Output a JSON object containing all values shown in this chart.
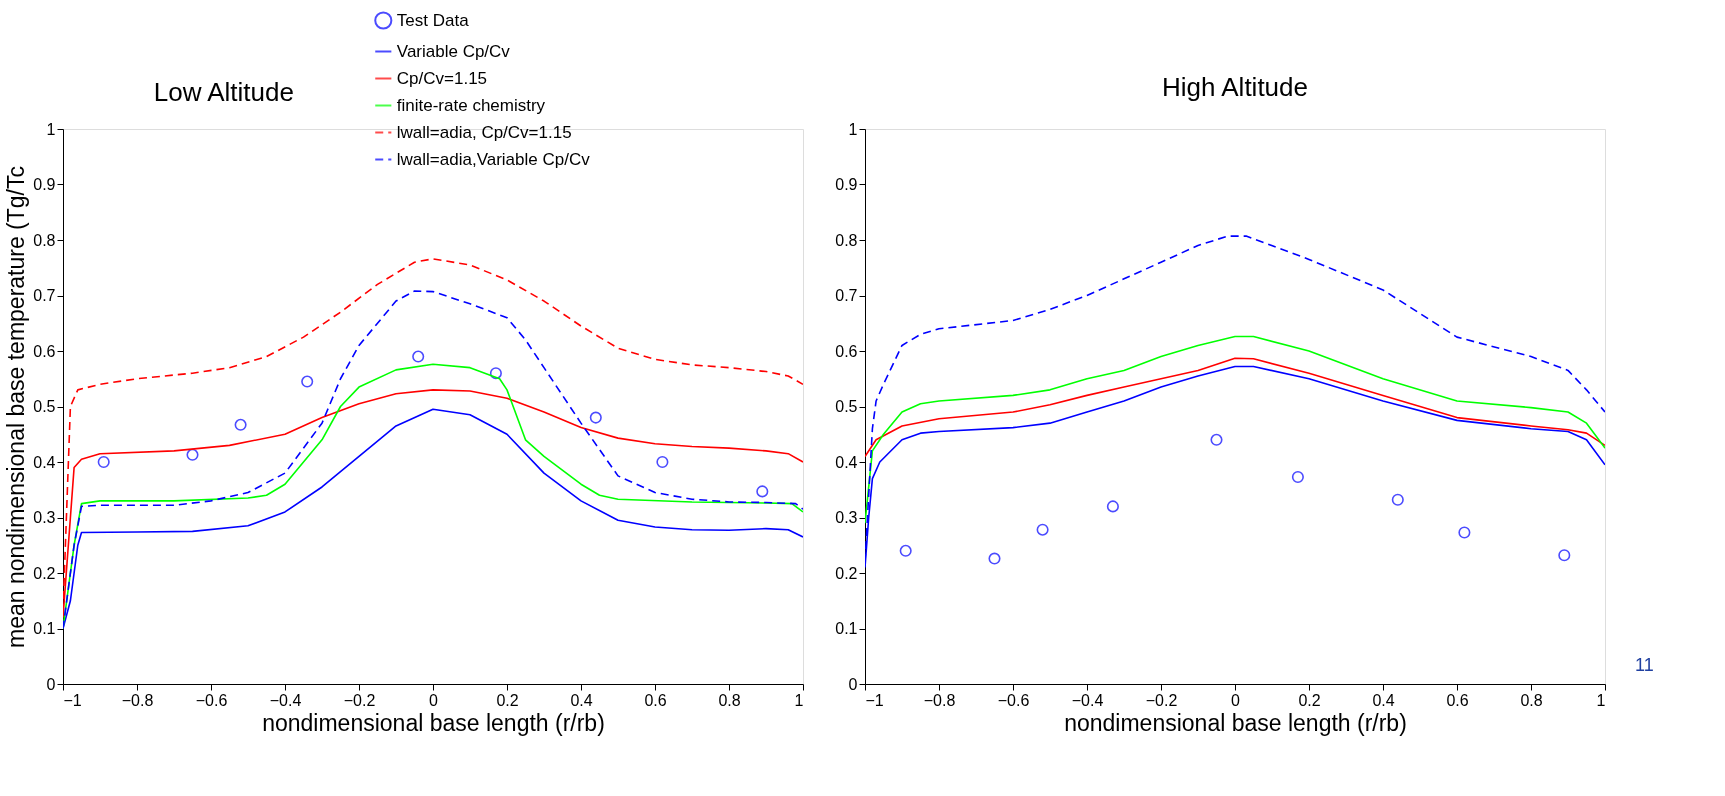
{
  "chart_data": [
    {
      "type": "line",
      "title": "Low Altitude",
      "xlabel": "nondimensional base length (r/rb)",
      "ylabel": "mean nondimensional base temperature (Tg/Tc",
      "xlim": [
        -1,
        1
      ],
      "ylim": [
        0,
        1
      ],
      "xticks": [
        -1,
        -0.8,
        -0.6,
        -0.4,
        -0.2,
        0,
        0.2,
        0.4,
        0.6,
        0.8,
        1
      ],
      "yticks": [
        0,
        0.1,
        0.2,
        0.3,
        0.4,
        0.5,
        0.6,
        0.7,
        0.8,
        0.9,
        1
      ],
      "legend": "top right",
      "series": [
        {
          "name": "Test Data",
          "type": "scatter",
          "color": "#0000ff",
          "marker": "circle",
          "x": [
            -0.89,
            -0.65,
            -0.52,
            -0.34,
            -0.04,
            0.17,
            0.44,
            0.62,
            0.89
          ],
          "values": [
            0.4,
            0.413,
            0.467,
            0.545,
            0.59,
            0.56,
            0.48,
            0.4,
            0.347
          ]
        },
        {
          "name": "Variable Cp/Cv",
          "type": "line",
          "color": "#0000ff",
          "line_style": "solid",
          "marker": "none",
          "x": [
            -1,
            -0.98,
            -0.96,
            -0.95,
            -0.8,
            -0.65,
            -0.5,
            -0.4,
            -0.3,
            -0.2,
            -0.1,
            0,
            0.1,
            0.2,
            0.3,
            0.4,
            0.5,
            0.6,
            0.7,
            0.8,
            0.9,
            0.96,
            1
          ],
          "values": [
            0.1,
            0.15,
            0.25,
            0.273,
            0.274,
            0.275,
            0.285,
            0.31,
            0.355,
            0.41,
            0.465,
            0.495,
            0.485,
            0.45,
            0.38,
            0.33,
            0.295,
            0.283,
            0.278,
            0.277,
            0.28,
            0.278,
            0.265
          ]
        },
        {
          "name": "Cp/Cv=1.15",
          "type": "line",
          "color": "#ff0000",
          "line_style": "solid",
          "marker": "none",
          "x": [
            -1,
            -0.98,
            -0.97,
            -0.95,
            -0.9,
            -0.7,
            -0.55,
            -0.4,
            -0.3,
            -0.2,
            -0.1,
            0,
            0.1,
            0.2,
            0.3,
            0.4,
            0.5,
            0.6,
            0.7,
            0.8,
            0.9,
            0.96,
            1
          ],
          "values": [
            0.12,
            0.3,
            0.39,
            0.405,
            0.415,
            0.42,
            0.43,
            0.45,
            0.48,
            0.505,
            0.523,
            0.53,
            0.528,
            0.515,
            0.49,
            0.462,
            0.443,
            0.433,
            0.428,
            0.425,
            0.42,
            0.415,
            0.4
          ]
        },
        {
          "name": "finite-rate chemistry",
          "type": "line",
          "color": "#00ff00",
          "line_style": "solid",
          "marker": "none",
          "x": [
            -1,
            -0.97,
            -0.95,
            -0.9,
            -0.7,
            -0.5,
            -0.45,
            -0.4,
            -0.3,
            -0.25,
            -0.2,
            -0.1,
            0,
            0.1,
            0.18,
            0.2,
            0.25,
            0.3,
            0.4,
            0.45,
            0.5,
            0.7,
            0.9,
            0.97,
            1
          ],
          "values": [
            0.1,
            0.25,
            0.325,
            0.33,
            0.33,
            0.335,
            0.34,
            0.36,
            0.44,
            0.5,
            0.535,
            0.566,
            0.576,
            0.57,
            0.55,
            0.53,
            0.44,
            0.41,
            0.36,
            0.34,
            0.333,
            0.328,
            0.326,
            0.325,
            0.31
          ]
        },
        {
          "name": "lwall=adia, Cp/Cv=1.15",
          "type": "line",
          "color": "#ff0000",
          "line_style": "dashed",
          "marker": "none",
          "x": [
            -1,
            -0.98,
            -0.96,
            -0.9,
            -0.8,
            -0.65,
            -0.55,
            -0.45,
            -0.35,
            -0.25,
            -0.15,
            -0.05,
            0,
            0.1,
            0.2,
            0.3,
            0.4,
            0.5,
            0.6,
            0.7,
            0.8,
            0.9,
            0.96,
            1
          ],
          "values": [
            0.13,
            0.5,
            0.53,
            0.54,
            0.55,
            0.56,
            0.57,
            0.59,
            0.625,
            0.67,
            0.72,
            0.76,
            0.766,
            0.755,
            0.728,
            0.69,
            0.645,
            0.605,
            0.585,
            0.575,
            0.57,
            0.563,
            0.555,
            0.54
          ]
        },
        {
          "name": "lwall=adia,Variable Cp/Cv",
          "type": "line",
          "color": "#0000ff",
          "line_style": "dashed",
          "marker": "none",
          "x": [
            -1,
            -0.97,
            -0.95,
            -0.9,
            -0.7,
            -0.6,
            -0.5,
            -0.4,
            -0.3,
            -0.25,
            -0.2,
            -0.1,
            -0.05,
            0,
            0.1,
            0.2,
            0.25,
            0.3,
            0.4,
            0.5,
            0.6,
            0.7,
            0.8,
            0.9,
            0.98,
            1
          ],
          "values": [
            0.1,
            0.25,
            0.32,
            0.322,
            0.322,
            0.33,
            0.345,
            0.38,
            0.47,
            0.55,
            0.61,
            0.69,
            0.708,
            0.707,
            0.685,
            0.66,
            0.62,
            0.57,
            0.47,
            0.375,
            0.345,
            0.333,
            0.328,
            0.327,
            0.325,
            0.315
          ]
        }
      ]
    },
    {
      "type": "line",
      "title": "High Altitude",
      "xlabel": "nondimensional base length (r/rb)",
      "xlim": [
        -1,
        1
      ],
      "ylim": [
        0,
        1
      ],
      "xticks": [
        -1,
        -0.8,
        -0.6,
        -0.4,
        -0.2,
        0,
        0.2,
        0.4,
        0.6,
        0.8,
        1
      ],
      "yticks": [
        0,
        0.1,
        0.2,
        0.3,
        0.4,
        0.5,
        0.6,
        0.7,
        0.8,
        0.9,
        1
      ],
      "annotations": [
        "11"
      ],
      "series": [
        {
          "type": "scatter",
          "color": "#0000ff",
          "marker": "circle",
          "x": [
            -0.89,
            -0.65,
            -0.52,
            -0.33,
            -0.05,
            0.17,
            0.44,
            0.62,
            0.89
          ],
          "values": [
            0.24,
            0.226,
            0.278,
            0.32,
            0.44,
            0.373,
            0.332,
            0.273,
            0.232
          ]
        },
        {
          "type": "line",
          "color": "#0000ff",
          "line_style": "solid",
          "marker": "none",
          "x": [
            -1,
            -0.99,
            -0.98,
            -0.96,
            -0.9,
            -0.85,
            -0.8,
            -0.6,
            -0.5,
            -0.4,
            -0.3,
            -0.2,
            -0.1,
            0,
            0.05,
            0.2,
            0.4,
            0.6,
            0.8,
            0.9,
            0.95,
            1
          ],
          "values": [
            0.21,
            0.3,
            0.37,
            0.4,
            0.44,
            0.452,
            0.455,
            0.462,
            0.47,
            0.49,
            0.51,
            0.535,
            0.555,
            0.572,
            0.572,
            0.55,
            0.51,
            0.475,
            0.46,
            0.455,
            0.44,
            0.395
          ]
        },
        {
          "type": "line",
          "color": "#ff0000",
          "line_style": "solid",
          "marker": "none",
          "x": [
            -1,
            -0.97,
            -0.9,
            -0.8,
            -0.6,
            -0.5,
            -0.4,
            -0.3,
            -0.2,
            -0.1,
            0,
            0.05,
            0.2,
            0.4,
            0.6,
            0.8,
            0.9,
            0.95,
            1
          ],
          "values": [
            0.41,
            0.44,
            0.465,
            0.478,
            0.49,
            0.503,
            0.52,
            0.535,
            0.55,
            0.565,
            0.587,
            0.586,
            0.56,
            0.52,
            0.48,
            0.465,
            0.458,
            0.452,
            0.43
          ]
        },
        {
          "type": "line",
          "color": "#00ff00",
          "line_style": "solid",
          "marker": "none",
          "x": [
            -1,
            -0.98,
            -0.95,
            -0.9,
            -0.85,
            -0.8,
            -0.6,
            -0.5,
            -0.4,
            -0.3,
            -0.2,
            -0.1,
            0,
            0.05,
            0.2,
            0.4,
            0.6,
            0.8,
            0.9,
            0.95,
            1
          ],
          "values": [
            0.29,
            0.42,
            0.45,
            0.49,
            0.505,
            0.51,
            0.52,
            0.53,
            0.55,
            0.565,
            0.59,
            0.61,
            0.626,
            0.626,
            0.6,
            0.55,
            0.51,
            0.498,
            0.49,
            0.47,
            0.425
          ]
        },
        {
          "type": "line",
          "color": "#0000ff",
          "line_style": "dashed",
          "marker": "none",
          "x": [
            -1,
            -0.98,
            -0.97,
            -0.95,
            -0.9,
            -0.85,
            -0.8,
            -0.6,
            -0.5,
            -0.4,
            -0.3,
            -0.2,
            -0.1,
            -0.02,
            0.03,
            0.2,
            0.4,
            0.6,
            0.8,
            0.9,
            0.95,
            1
          ],
          "values": [
            0.22,
            0.46,
            0.51,
            0.54,
            0.61,
            0.63,
            0.64,
            0.655,
            0.675,
            0.7,
            0.73,
            0.76,
            0.79,
            0.807,
            0.807,
            0.765,
            0.71,
            0.625,
            0.59,
            0.565,
            0.53,
            0.49
          ]
        }
      ]
    }
  ]
}
